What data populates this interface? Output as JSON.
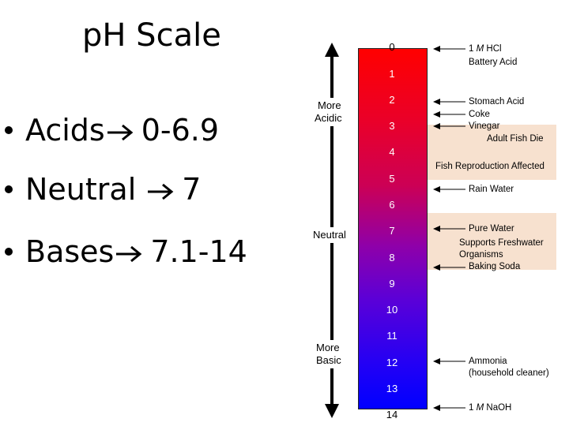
{
  "title": "pH Scale",
  "bullets": [
    {
      "label": "Acids",
      "range": "0-6.9"
    },
    {
      "label": "Neutral",
      "range": "7"
    },
    {
      "label": "Bases",
      "range": "7.1-14"
    }
  ],
  "axis_labels": {
    "more_acidic_line1": "More",
    "more_acidic_line2": "Acidic",
    "neutral": "Neutral",
    "more_basic_line1": "More",
    "more_basic_line2": "Basic"
  },
  "scale_numbers": [
    "0",
    "1",
    "2",
    "3",
    "4",
    "5",
    "6",
    "7",
    "8",
    "9",
    "10",
    "11",
    "12",
    "13",
    "14"
  ],
  "annotations": {
    "hcl_molar": "1",
    "hcl_unit": "M",
    "hcl_name": "HCl",
    "battery_acid": "Battery Acid",
    "stomach_acid": "Stomach Acid",
    "coke": "Coke",
    "vinegar": "Vinegar",
    "adult_fish_die": "Adult Fish Die",
    "fish_reproduction": "Fish Reproduction Affected",
    "rain_water": "Rain Water",
    "pure_water": "Pure Water",
    "supports_freshwater_1": "Supports Freshwater",
    "supports_freshwater_2": "Organisms",
    "baking_soda": "Baking Soda",
    "ammonia_1": "Ammonia",
    "ammonia_2": "(household cleaner)",
    "naoh_molar": "1",
    "naoh_unit": "M",
    "naoh_name": "NaOH"
  },
  "colors": {
    "acid_end": "#ff0000",
    "base_end": "#0000ff",
    "band_fill": "#f7e1cf"
  }
}
